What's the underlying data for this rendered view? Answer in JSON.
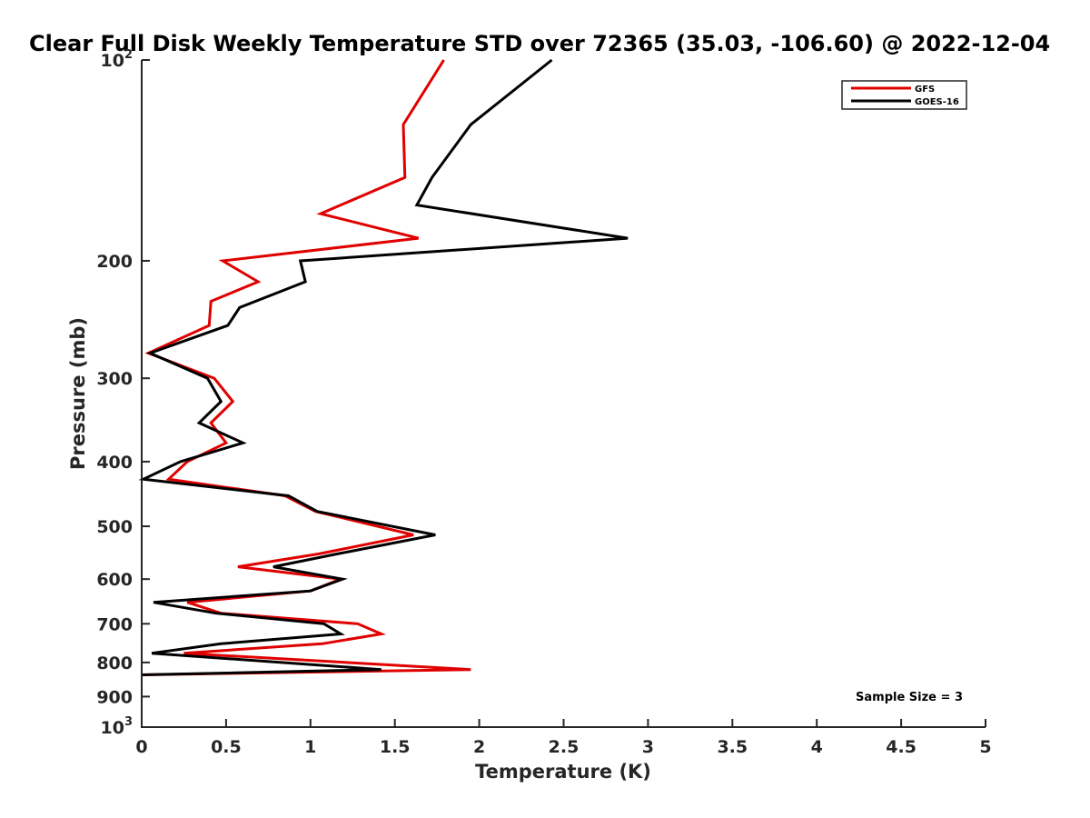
{
  "chart_data": {
    "type": "line",
    "title": "Clear Full Disk Weekly Temperature STD over 72365 (35.03, -106.60) @ 2022-12-04",
    "xlabel": "Temperature (K)",
    "ylabel": "Pressure (mb)",
    "xlim": [
      0,
      5
    ],
    "ylim": [
      100,
      1000
    ],
    "y_scale": "log",
    "y_reversed": true,
    "x_ticks": [
      "0",
      "0.5",
      "1",
      "1.5",
      "2",
      "2.5",
      "3",
      "3.5",
      "4",
      "4.5",
      "5"
    ],
    "x_tick_values": [
      0,
      0.5,
      1,
      1.5,
      2,
      2.5,
      3,
      3.5,
      4,
      4.5,
      5
    ],
    "y_ticks": [
      {
        "value": 100,
        "base": "10",
        "exp": "2"
      },
      {
        "value": 200,
        "label": "200"
      },
      {
        "value": 300,
        "label": "300"
      },
      {
        "value": 400,
        "label": "400"
      },
      {
        "value": 500,
        "label": "500"
      },
      {
        "value": 600,
        "label": "600"
      },
      {
        "value": 700,
        "label": "700"
      },
      {
        "value": 800,
        "label": "800"
      },
      {
        "value": 900,
        "label": "900"
      },
      {
        "value": 1000,
        "base": "10",
        "exp": "3"
      }
    ],
    "grid": false,
    "legend_position": "top-right",
    "series": [
      {
        "name": "GFS",
        "color": "#e00000",
        "points": [
          [
            1.79,
            100
          ],
          [
            1.55,
            125
          ],
          [
            1.56,
            150
          ],
          [
            1.06,
            170
          ],
          [
            1.64,
            185
          ],
          [
            0.48,
            200
          ],
          [
            0.69,
            215
          ],
          [
            0.41,
            230
          ],
          [
            0.4,
            250
          ],
          [
            0.04,
            275
          ],
          [
            0.43,
            300
          ],
          [
            0.54,
            325
          ],
          [
            0.41,
            350
          ],
          [
            0.5,
            375
          ],
          [
            0.27,
            400
          ],
          [
            0.16,
            425
          ],
          [
            0.85,
            450
          ],
          [
            1.03,
            475
          ],
          [
            1.61,
            515
          ],
          [
            1.05,
            550
          ],
          [
            0.57,
            575
          ],
          [
            1.18,
            600
          ],
          [
            1.0,
            625
          ],
          [
            0.27,
            650
          ],
          [
            0.47,
            675
          ],
          [
            1.28,
            700
          ],
          [
            1.42,
            725
          ],
          [
            1.07,
            750
          ],
          [
            0.25,
            775
          ],
          [
            1.95,
            820
          ],
          [
            0.0,
            835
          ]
        ]
      },
      {
        "name": "GOES-16",
        "color": "#000000",
        "points": [
          [
            2.43,
            100
          ],
          [
            1.95,
            125
          ],
          [
            1.72,
            150
          ],
          [
            1.63,
            165
          ],
          [
            2.88,
            185
          ],
          [
            0.94,
            200
          ],
          [
            0.97,
            215
          ],
          [
            0.58,
            235
          ],
          [
            0.51,
            250
          ],
          [
            0.05,
            275
          ],
          [
            0.39,
            300
          ],
          [
            0.47,
            325
          ],
          [
            0.34,
            350
          ],
          [
            0.6,
            375
          ],
          [
            0.23,
            400
          ],
          [
            0.01,
            425
          ],
          [
            0.87,
            450
          ],
          [
            1.04,
            475
          ],
          [
            1.74,
            515
          ],
          [
            1.16,
            550
          ],
          [
            0.78,
            575
          ],
          [
            1.19,
            600
          ],
          [
            1.0,
            625
          ],
          [
            0.07,
            650
          ],
          [
            0.44,
            675
          ],
          [
            1.08,
            700
          ],
          [
            1.18,
            725
          ],
          [
            0.47,
            750
          ],
          [
            0.06,
            775
          ],
          [
            1.42,
            820
          ],
          [
            0.0,
            835
          ]
        ]
      }
    ],
    "annotation": "Sample Size = 3"
  }
}
